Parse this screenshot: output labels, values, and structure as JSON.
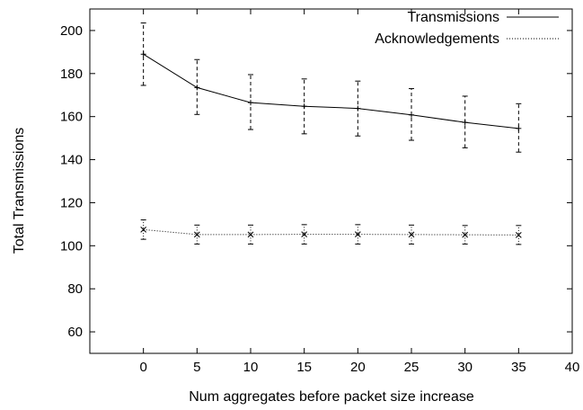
{
  "chart_data": {
    "type": "line",
    "xlabel": "Num aggregates before packet size increase",
    "ylabel": "Total Transmissions",
    "xlim": [
      -5,
      40
    ],
    "ylim": [
      50,
      210
    ],
    "xticks": [
      0,
      5,
      10,
      15,
      20,
      25,
      30,
      35,
      40
    ],
    "yticks": [
      60,
      80,
      100,
      120,
      140,
      160,
      180,
      200
    ],
    "grid": false,
    "legend_position": "top-right",
    "x": [
      0,
      5,
      10,
      15,
      20,
      25,
      30,
      35
    ],
    "series": [
      {
        "name": "Transmissions",
        "line_style": "solid",
        "marker": "plus",
        "values": [
          189,
          173.5,
          166.5,
          164.8,
          163.8,
          160.8,
          157.3,
          154.5
        ],
        "error_low": [
          174.5,
          161,
          154,
          152,
          151,
          149,
          145.5,
          143.5
        ],
        "error_high": [
          203.5,
          186.5,
          179.5,
          177.5,
          176.5,
          173,
          169.5,
          166
        ]
      },
      {
        "name": "Acknowledgements",
        "line_style": "dotted",
        "marker": "x",
        "values": [
          107.5,
          105.2,
          105.2,
          105.3,
          105.3,
          105.2,
          105.1,
          105
        ],
        "error_low": [
          103,
          100.8,
          100.8,
          100.8,
          100.8,
          100.8,
          100.8,
          100.6
        ],
        "error_high": [
          112,
          109.6,
          109.6,
          109.8,
          109.8,
          109.6,
          109.4,
          109.4
        ]
      }
    ]
  }
}
